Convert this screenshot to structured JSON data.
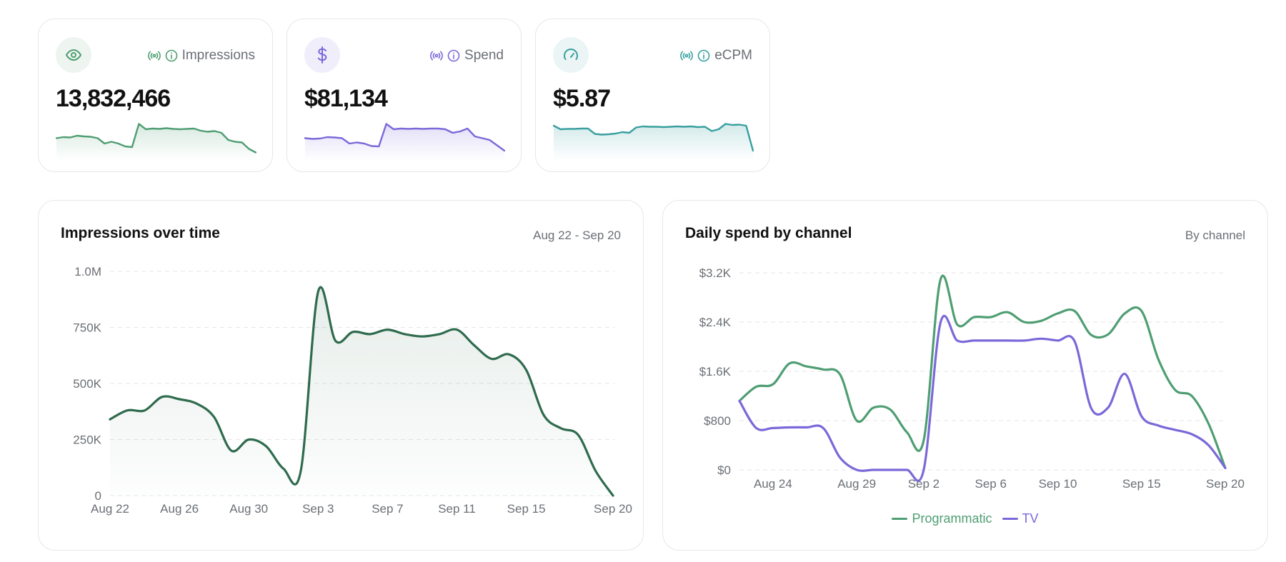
{
  "kpis": [
    {
      "label": "Impressions",
      "value": "13,832,466",
      "icon": "eye-icon",
      "color": "#4f9e73",
      "icon_bg": "#eef5f0",
      "spark": [
        0.55,
        0.58,
        0.57,
        0.62,
        0.6,
        0.59,
        0.55,
        0.4,
        0.45,
        0.4,
        0.32,
        0.3,
        0.95,
        0.8,
        0.82,
        0.81,
        0.83,
        0.81,
        0.8,
        0.81,
        0.82,
        0.76,
        0.73,
        0.75,
        0.7,
        0.5,
        0.45,
        0.43,
        0.25,
        0.15
      ]
    },
    {
      "label": "Spend",
      "value": "$81,134",
      "icon": "dollar-icon",
      "color": "#7b68d9",
      "icon_bg": "#f0eefb",
      "spark": [
        0.55,
        0.53,
        0.54,
        0.58,
        0.57,
        0.55,
        0.4,
        0.43,
        0.4,
        0.33,
        0.32,
        0.95,
        0.8,
        0.82,
        0.81,
        0.82,
        0.81,
        0.82,
        0.82,
        0.8,
        0.7,
        0.74,
        0.82,
        0.6,
        0.55,
        0.5,
        0.35,
        0.2
      ]
    },
    {
      "label": "eCPM",
      "value": "$5.87",
      "icon": "gauge-icon",
      "color": "#3a9fa0",
      "icon_bg": "#ebf5f5",
      "spark": [
        0.9,
        0.8,
        0.81,
        0.81,
        0.82,
        0.82,
        0.67,
        0.65,
        0.66,
        0.68,
        0.72,
        0.7,
        0.85,
        0.88,
        0.87,
        0.87,
        0.86,
        0.87,
        0.88,
        0.87,
        0.88,
        0.86,
        0.87,
        0.75,
        0.8,
        0.95,
        0.92,
        0.93,
        0.9,
        0.2
      ]
    }
  ],
  "impressions_panel": {
    "title": "Impressions over time",
    "subtitle": "Aug 22 - Sep 20"
  },
  "spend_panel": {
    "title": "Daily spend by channel",
    "subtitle": "By channel"
  },
  "chart_data": [
    {
      "type": "area",
      "x": [
        "Aug 22",
        "Aug 23",
        "Aug 24",
        "Aug 25",
        "Aug 26",
        "Aug 27",
        "Aug 28",
        "Aug 29",
        "Aug 30",
        "Aug 31",
        "Sep 1",
        "Sep 2",
        "Sep 3",
        "Sep 4",
        "Sep 5",
        "Sep 6",
        "Sep 7",
        "Sep 8",
        "Sep 9",
        "Sep 10",
        "Sep 11",
        "Sep 12",
        "Sep 13",
        "Sep 14",
        "Sep 15",
        "Sep 16",
        "Sep 17",
        "Sep 18",
        "Sep 19",
        "Sep 20"
      ],
      "x_ticks": [
        "Aug 22",
        "Aug 26",
        "Aug 30",
        "Sep 3",
        "Sep 7",
        "Sep 11",
        "Sep 15",
        "Sep 20"
      ],
      "series": [
        {
          "values": [
            340000,
            380000,
            380000,
            440000,
            430000,
            410000,
            350000,
            200000,
            250000,
            220000,
            120000,
            110000,
            910000,
            690000,
            730000,
            720000,
            740000,
            720000,
            710000,
            720000,
            740000,
            670000,
            610000,
            630000,
            560000,
            360000,
            300000,
            270000,
            110000,
            0
          ],
          "color": "#2f6b4e"
        }
      ],
      "yticks": [
        "0",
        "250K",
        "500K",
        "750K",
        "1.0M"
      ],
      "ylim": [
        0,
        1000000
      ]
    },
    {
      "type": "line",
      "x": [
        "Aug 22",
        "Aug 23",
        "Aug 24",
        "Aug 25",
        "Aug 26",
        "Aug 27",
        "Aug 28",
        "Aug 29",
        "Aug 30",
        "Aug 31",
        "Sep 1",
        "Sep 2",
        "Sep 3",
        "Sep 4",
        "Sep 5",
        "Sep 6",
        "Sep 7",
        "Sep 8",
        "Sep 9",
        "Sep 10",
        "Sep 11",
        "Sep 12",
        "Sep 13",
        "Sep 14",
        "Sep 15",
        "Sep 16",
        "Sep 17",
        "Sep 18",
        "Sep 19",
        "Sep 20"
      ],
      "x_ticks": [
        "Aug 24",
        "Aug 29",
        "Sep 2",
        "Sep 6",
        "Sep 10",
        "Sep 15",
        "Sep 20"
      ],
      "series": [
        {
          "name": "Programmatic",
          "color": "#4f9e73",
          "values": [
            1120,
            1350,
            1390,
            1730,
            1680,
            1630,
            1550,
            800,
            1010,
            980,
            610,
            480,
            3090,
            2360,
            2480,
            2480,
            2560,
            2400,
            2420,
            2540,
            2580,
            2190,
            2200,
            2540,
            2580,
            1800,
            1300,
            1200,
            750,
            30
          ]
        },
        {
          "name": "TV",
          "color": "#7b68d9",
          "values": [
            1120,
            680,
            680,
            690,
            690,
            680,
            200,
            0,
            0,
            0,
            0,
            0,
            2390,
            2100,
            2100,
            2100,
            2100,
            2100,
            2130,
            2100,
            2090,
            1000,
            1010,
            1560,
            870,
            720,
            650,
            580,
            400,
            30
          ]
        }
      ],
      "yticks": [
        "$0",
        "$800",
        "$1.6K",
        "$2.4K",
        "$3.2K"
      ],
      "ylim": [
        0,
        3200
      ]
    }
  ]
}
